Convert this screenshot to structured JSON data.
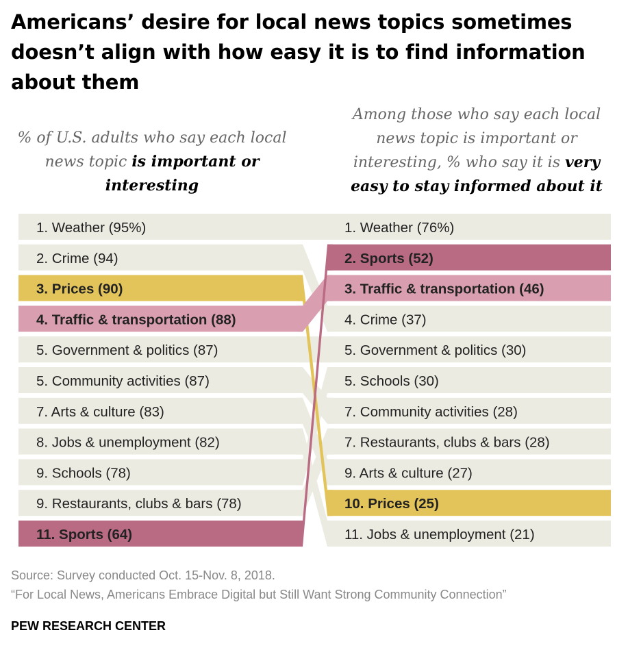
{
  "title": "Americans’ desire for local news topics sometimes doesn’t align with how easy it is to find information about them",
  "subtitles": {
    "left_plain": "% of U.S. adults who say each local news topic ",
    "left_bold": "is important or interesting",
    "right_plain": "Among those who say each local news topic is important or interesting, % who say it is ",
    "right_bold": "very easy to stay informed about it"
  },
  "chart_data": {
    "type": "table",
    "left": [
      {
        "rank": "1.",
        "topic": "Weather",
        "value": "(95%)"
      },
      {
        "rank": "2.",
        "topic": "Crime",
        "value": "(94)"
      },
      {
        "rank": "3.",
        "topic": "Prices",
        "value": "(90)"
      },
      {
        "rank": "4.",
        "topic": "Traffic & transportation",
        "value": "(88)"
      },
      {
        "rank": "5.",
        "topic": "Government & politics",
        "value": "(87)"
      },
      {
        "rank": "5.",
        "topic": "Community activities",
        "value": "(87)"
      },
      {
        "rank": "7.",
        "topic": "Arts & culture",
        "value": "(83)"
      },
      {
        "rank": "8.",
        "topic": "Jobs & unemployment",
        "value": "(82)"
      },
      {
        "rank": "9.",
        "topic": "Schools",
        "value": "(78)"
      },
      {
        "rank": "9.",
        "topic": "Restaurants, clubs & bars",
        "value": "(78)"
      },
      {
        "rank": "11.",
        "topic": "Sports",
        "value": "(64)"
      }
    ],
    "right": [
      {
        "rank": "1.",
        "topic": "Weather",
        "value": "(76%)"
      },
      {
        "rank": "2.",
        "topic": "Sports",
        "value": "(52)"
      },
      {
        "rank": "3.",
        "topic": "Traffic & transportation",
        "value": "(46)"
      },
      {
        "rank": "4.",
        "topic": "Crime",
        "value": "(37)"
      },
      {
        "rank": "5.",
        "topic": "Government & politics",
        "value": "(30)"
      },
      {
        "rank": "5.",
        "topic": "Schools",
        "value": "(30)"
      },
      {
        "rank": "7.",
        "topic": "Community activities",
        "value": "(28)"
      },
      {
        "rank": "7.",
        "topic": "Restaurants, clubs & bars",
        "value": "(28)"
      },
      {
        "rank": "9.",
        "topic": "Arts & culture",
        "value": "(27)"
      },
      {
        "rank": "10.",
        "topic": "Prices",
        "value": "(25)"
      },
      {
        "rank": "11.",
        "topic": "Jobs & unemployment",
        "value": "(21)"
      }
    ],
    "highlights": {
      "Prices": "#e3c45b",
      "Traffic & transportation": "#d99fb0",
      "Sports": "#b96b84"
    },
    "colors": {
      "row_bg": "#ecebe1",
      "connector": "#ecebe1",
      "text": "#222222"
    }
  },
  "footer": {
    "source": "Source: Survey conducted Oct. 15-Nov. 8, 2018.",
    "report": "“For Local News, Americans Embrace Digital but Still Want Strong Community Connection”",
    "brand": "PEW RESEARCH CENTER"
  }
}
